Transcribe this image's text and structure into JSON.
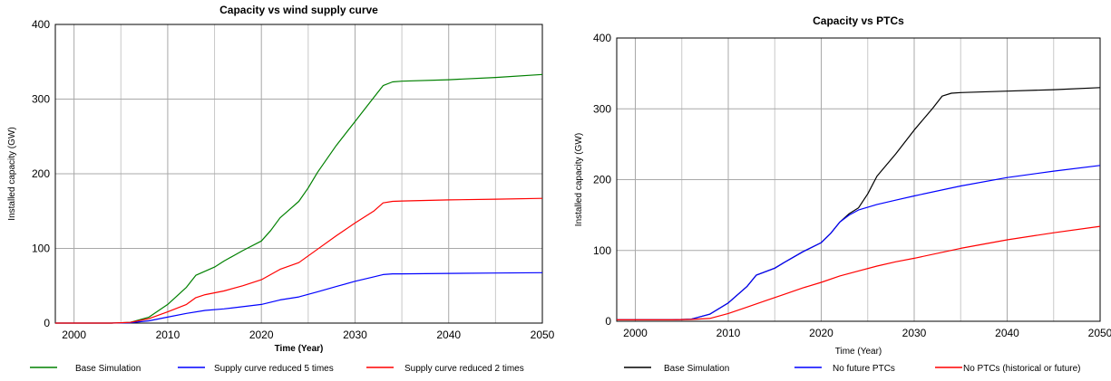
{
  "chart_data": [
    {
      "type": "line",
      "title": "Capacity vs wind supply curve",
      "xlabel": "Time (Year)",
      "ylabel": "Installed capacity (GW)",
      "xlim": [
        1998,
        2050
      ],
      "ylim": [
        0,
        400
      ],
      "xticks": [
        2000,
        2010,
        2020,
        2030,
        2040,
        2050
      ],
      "yticks": [
        0,
        100,
        200,
        300,
        400
      ],
      "grid": true,
      "legend_position": "bottom",
      "series": [
        {
          "name": "Base Simulation",
          "color": "#008000",
          "x": [
            1998,
            2004,
            2006,
            2008,
            2010,
            2012,
            2013,
            2015,
            2016,
            2018,
            2020,
            2021,
            2022,
            2023,
            2024,
            2025,
            2026,
            2028,
            2030,
            2032,
            2033,
            2034,
            2035,
            2040,
            2045,
            2050
          ],
          "values": [
            0,
            0,
            1,
            8,
            25,
            48,
            64,
            75,
            83,
            97,
            110,
            124,
            141,
            152,
            163,
            181,
            202,
            238,
            270,
            302,
            318,
            323,
            324,
            326,
            329,
            333
          ]
        },
        {
          "name": "Supply curve reduced 5 times",
          "color": "#0000ff",
          "x": [
            1998,
            2004,
            2006,
            2008,
            2010,
            2012,
            2014,
            2016,
            2018,
            2020,
            2022,
            2024,
            2026,
            2028,
            2030,
            2032,
            2033,
            2034,
            2035,
            2040,
            2045,
            2050
          ],
          "values": [
            0,
            0,
            0.5,
            3,
            8,
            13,
            17,
            19,
            22,
            25,
            31,
            35,
            42,
            49,
            56,
            62,
            65,
            66,
            66,
            66.5,
            67,
            67.5
          ]
        },
        {
          "name": "Supply curve reduced 2 times",
          "color": "#ff0000",
          "x": [
            1998,
            2004,
            2006,
            2008,
            2010,
            2012,
            2013,
            2014,
            2016,
            2018,
            2020,
            2022,
            2024,
            2026,
            2028,
            2030,
            2032,
            2033,
            2034,
            2035,
            2040,
            2045,
            2050
          ],
          "values": [
            0,
            0,
            1,
            6,
            15,
            25,
            34,
            38,
            43,
            50,
            58,
            72,
            81,
            99,
            117,
            134,
            150,
            161,
            163,
            163.5,
            165,
            166,
            167
          ]
        }
      ]
    },
    {
      "type": "line",
      "title": "Capacity vs PTCs",
      "xlabel": "Time (Year)",
      "ylabel": "Installed capacity (GW)",
      "xlim": [
        1998,
        2050
      ],
      "ylim": [
        0,
        400
      ],
      "xticks": [
        2000,
        2010,
        2020,
        2030,
        2040,
        2050
      ],
      "yticks": [
        0,
        100,
        200,
        300,
        400
      ],
      "grid": true,
      "legend_position": "bottom",
      "series": [
        {
          "name": "Base Simulation",
          "color": "#000000",
          "x": [
            1998,
            2004,
            2006,
            2008,
            2010,
            2012,
            2013,
            2015,
            2016,
            2018,
            2020,
            2021,
            2022,
            2023,
            2024,
            2025,
            2026,
            2028,
            2030,
            2032,
            2033,
            2034,
            2035,
            2040,
            2045,
            2050
          ],
          "values": [
            2,
            2,
            3,
            10,
            26,
            49,
            65,
            75,
            83,
            98,
            111,
            124,
            140,
            152,
            160,
            180,
            205,
            236,
            270,
            301,
            318,
            322,
            323,
            325,
            327,
            330
          ]
        },
        {
          "name": "No future PTCs",
          "color": "#0000ff",
          "x": [
            1998,
            2004,
            2006,
            2008,
            2010,
            2012,
            2013,
            2015,
            2016,
            2018,
            2020,
            2021,
            2022,
            2023,
            2024,
            2026,
            2028,
            2030,
            2035,
            2040,
            2045,
            2050
          ],
          "values": [
            2,
            2,
            3,
            10,
            26,
            49,
            65,
            75,
            83,
            98,
            111,
            124,
            140,
            150,
            157,
            165,
            171,
            177,
            191,
            203,
            212,
            220
          ]
        },
        {
          "name": "No PTCs (historical or future)",
          "color": "#ff0000",
          "x": [
            1998,
            2004,
            2006,
            2008,
            2010,
            2012,
            2014,
            2016,
            2018,
            2020,
            2022,
            2024,
            2026,
            2028,
            2030,
            2035,
            2040,
            2045,
            2050
          ],
          "values": [
            2,
            2,
            2.5,
            4,
            11,
            20,
            29,
            38,
            47,
            55,
            64,
            71,
            78,
            84,
            89,
            103,
            115,
            125,
            134
          ]
        }
      ]
    }
  ]
}
